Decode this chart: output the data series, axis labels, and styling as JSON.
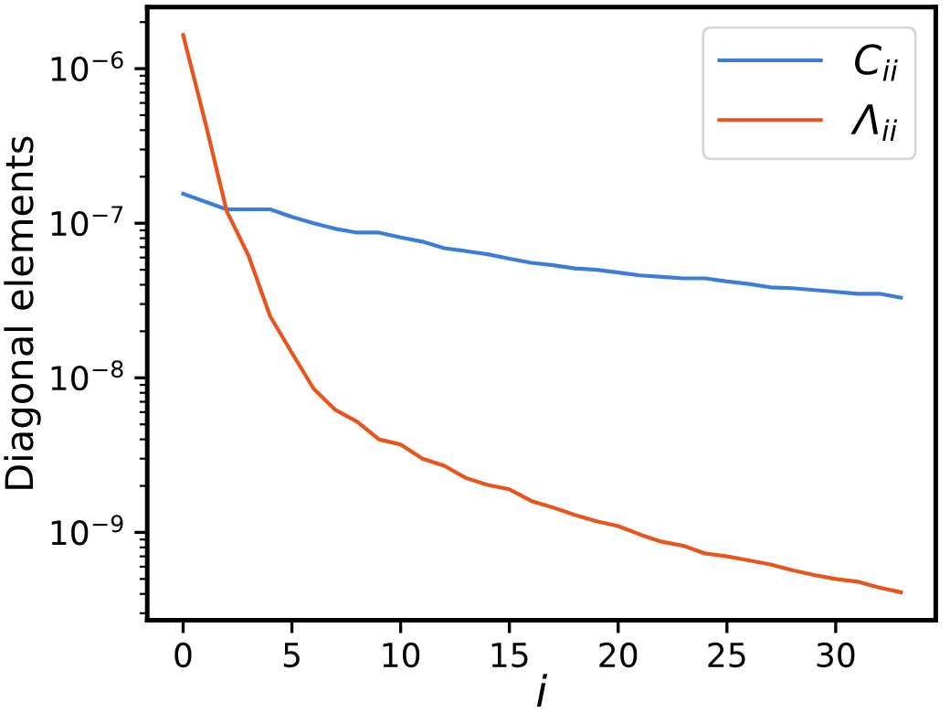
{
  "chart_data": {
    "type": "line",
    "xlabel": "i",
    "ylabel": "Diagonal elements",
    "x": [
      0,
      1,
      2,
      3,
      4,
      5,
      6,
      7,
      8,
      9,
      10,
      11,
      12,
      13,
      14,
      15,
      16,
      17,
      18,
      19,
      20,
      21,
      22,
      23,
      24,
      25,
      26,
      27,
      28,
      29,
      30,
      31,
      32,
      33
    ],
    "series": [
      {
        "name": "C$_{ii}$",
        "color": "#3b7dd8",
        "values": [
          1.55e-07,
          1.38e-07,
          1.23e-07,
          1.23e-07,
          1.23e-07,
          1.1e-07,
          1e-07,
          9.2e-08,
          8.7e-08,
          8.7e-08,
          8.1e-08,
          7.6e-08,
          6.9e-08,
          6.6e-08,
          6.3e-08,
          5.9e-08,
          5.55e-08,
          5.35e-08,
          5.1e-08,
          5e-08,
          4.8e-08,
          4.6e-08,
          4.5e-08,
          4.4e-08,
          4.4e-08,
          4.2e-08,
          4.05e-08,
          3.85e-08,
          3.8e-08,
          3.7e-08,
          3.6e-08,
          3.5e-08,
          3.5e-08,
          3.3e-08
        ]
      },
      {
        "name": "Λ$_{ii}$",
        "color": "#e8541c",
        "values": [
          1.65e-06,
          4.6e-07,
          1.2e-07,
          6.2e-08,
          2.5e-08,
          1.45e-08,
          8.5e-09,
          6.2e-09,
          5.2e-09,
          4e-09,
          3.7e-09,
          3e-09,
          2.7e-09,
          2.25e-09,
          2.03e-09,
          1.9e-09,
          1.6e-09,
          1.45e-09,
          1.3e-09,
          1.18e-09,
          1.1e-09,
          9.7e-10,
          8.7e-10,
          8.2e-10,
          7.3e-10,
          7e-10,
          6.6e-10,
          6.2e-10,
          5.7e-10,
          5.3e-10,
          5e-10,
          4.8e-10,
          4.4e-10,
          4.1e-10
        ]
      }
    ],
    "log": "y",
    "xlim": [
      -1.65,
      34.6
    ],
    "ylim": [
      2.7e-10,
      2.5e-06
    ],
    "xticks": [
      0,
      5,
      10,
      15,
      20,
      25,
      30
    ],
    "yticks": [
      {
        "value": 1e-09,
        "label": "10$^{−9}$"
      },
      {
        "value": 1e-08,
        "label": "10$^{−8}$"
      },
      {
        "value": 1e-07,
        "label": "10$^{−7}$"
      },
      {
        "value": 1e-06,
        "label": "10$^{−6}$"
      }
    ],
    "legend": "top right",
    "grid": false,
    "marker": "none",
    "line_style": "solid"
  }
}
